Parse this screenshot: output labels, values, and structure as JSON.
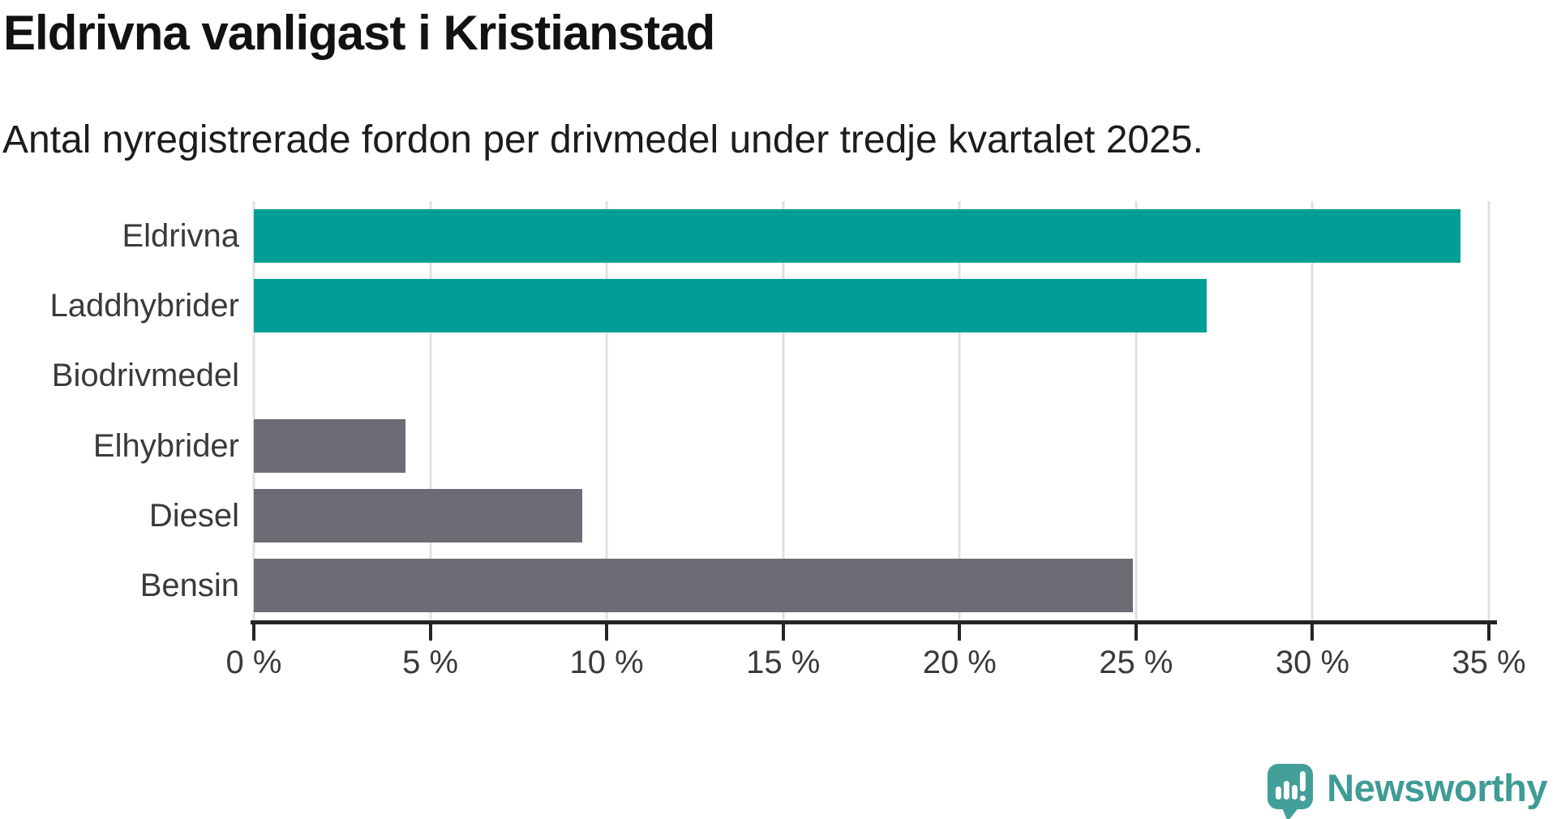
{
  "header": {
    "title": "Eldrivna vanligast i Kristianstad",
    "subtitle": "Antal nyregistrerade fordon per drivmedel under tredje kvartalet 2025."
  },
  "colors": {
    "teal": "#009e94",
    "gray": "#6c6c74",
    "axis": "#252525",
    "gridline": "#e0e0e0",
    "logo_teal": "#42a099",
    "logo_text": "#3f9b95"
  },
  "chart_data": {
    "type": "bar",
    "orientation": "horizontal",
    "title": "Eldrivna vanligast i Kristianstad",
    "subtitle": "Antal nyregistrerade fordon per drivmedel under tredje kvartalet 2025.",
    "xlabel": "",
    "ylabel": "",
    "xlim": [
      0,
      35
    ],
    "xmax": 35,
    "grid": "vertical",
    "legend": "none",
    "x_ticks": [
      "0 %",
      "5 %",
      "10 %",
      "15 %",
      "20 %",
      "25 %",
      "30 %",
      "35 %"
    ],
    "categories": [
      "Eldrivna",
      "Laddhybrider",
      "Biodrivmedel",
      "Elhybrider",
      "Diesel",
      "Bensin"
    ],
    "values": [
      34.2,
      27.0,
      0,
      4.3,
      9.3,
      24.9
    ],
    "unit": "%",
    "rows": [
      {
        "label": "Eldrivna",
        "value": 34.2,
        "color": "teal"
      },
      {
        "label": "Laddhybrider",
        "value": 27.0,
        "color": "teal"
      },
      {
        "label": "Biodrivmedel",
        "value": 0,
        "color": "gray"
      },
      {
        "label": "Elhybrider",
        "value": 4.3,
        "color": "gray"
      },
      {
        "label": "Diesel",
        "value": 9.3,
        "color": "gray"
      },
      {
        "label": "Bensin",
        "value": 24.9,
        "color": "gray"
      }
    ]
  },
  "branding": {
    "logo_text": "Newsworthy",
    "logo_icon": "speech-bubble-with-bar-chart-and-exclamation"
  }
}
